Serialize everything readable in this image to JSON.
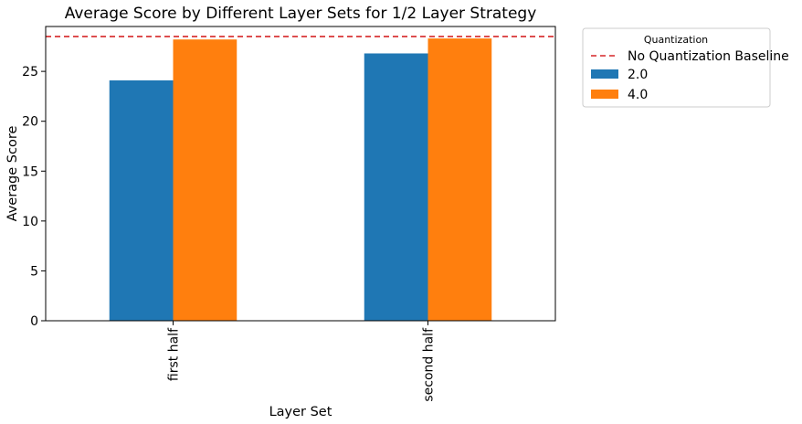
{
  "chart_data": {
    "type": "bar",
    "title": "Average Score by Different Layer Sets for 1/2 Layer Strategy",
    "xlabel": "Layer Set",
    "ylabel": "Average Score",
    "categories": [
      "first half",
      "second half"
    ],
    "series": [
      {
        "name": "2.0",
        "values": [
          24.1,
          26.8
        ],
        "color": "#1f77b4"
      },
      {
        "name": "4.0",
        "values": [
          28.2,
          28.3
        ],
        "color": "#ff7f0e"
      }
    ],
    "baseline": {
      "label": "No Quantization Baseline",
      "value": 28.5,
      "color": "#d62728",
      "style": "dashed"
    },
    "ylim": [
      0,
      29.5
    ],
    "yticks": [
      0,
      5,
      10,
      15,
      20,
      25
    ],
    "grid": false,
    "legend": {
      "title": "Quantization",
      "placement": "outside-top-right"
    }
  }
}
